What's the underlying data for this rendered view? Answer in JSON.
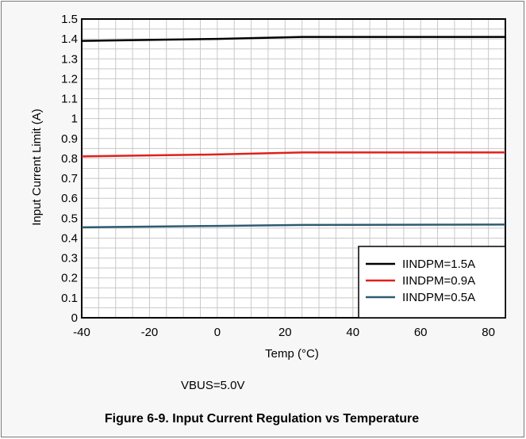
{
  "chart_data": {
    "type": "line",
    "xlabel": "Temp (°C)",
    "ylabel": "Input Current Limit (A)",
    "xlim": [
      -40,
      85
    ],
    "ylim": [
      0,
      1.5
    ],
    "x_ticks": [
      -40,
      -20,
      0,
      20,
      40,
      60,
      80
    ],
    "y_ticks": [
      0,
      0.1,
      0.2,
      0.3,
      0.4,
      0.5,
      0.6,
      0.7,
      0.8,
      0.9,
      1,
      1.1,
      1.2,
      1.3,
      1.4,
      1.5
    ],
    "grid": true,
    "legend_position": "bottom-right",
    "series": [
      {
        "name": "IINDPM=1.5A",
        "color": "#000000",
        "x": [
          -40,
          0,
          25,
          85
        ],
        "y": [
          1.39,
          1.4,
          1.41,
          1.41
        ]
      },
      {
        "name": "IINDPM=0.9A",
        "color": "#e0201c",
        "x": [
          -40,
          0,
          25,
          85
        ],
        "y": [
          0.81,
          0.82,
          0.83,
          0.83
        ]
      },
      {
        "name": "IINDPM=0.5A",
        "color": "#2e5b70",
        "x": [
          -40,
          0,
          25,
          85
        ],
        "y": [
          0.454,
          0.461,
          0.466,
          0.468
        ]
      }
    ],
    "annotation": "VBUS=5.0V"
  },
  "caption": "Figure 6-9. Input Current Regulation vs Temperature"
}
